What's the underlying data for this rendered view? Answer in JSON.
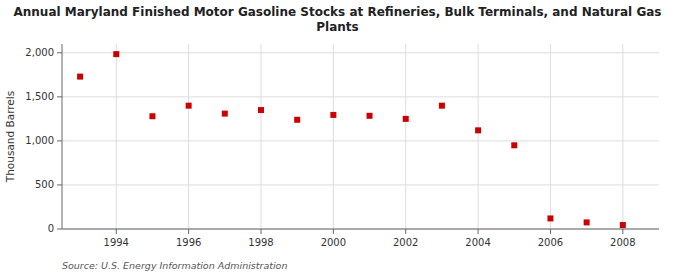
{
  "chart_data": {
    "type": "scatter",
    "title": "Annual Maryland Finished Motor Gasoline Stocks at Refineries, Bulk Terminals, and Natural Gas\nPlants",
    "ylabel": "Thousand Barrels",
    "source": "Source: U.S. Energy Information Administration",
    "x": [
      1993,
      1994,
      1995,
      1996,
      1997,
      1998,
      1999,
      2000,
      2001,
      2002,
      2003,
      2004,
      2005,
      2006,
      2007,
      2008
    ],
    "values": [
      1730,
      1985,
      1280,
      1400,
      1310,
      1350,
      1240,
      1295,
      1285,
      1250,
      1400,
      1120,
      950,
      120,
      75,
      45
    ],
    "color": "#cc0000",
    "marker": "square",
    "xlim": [
      1992.5,
      2009.0
    ],
    "ylim": [
      0,
      2100
    ],
    "xticks": [
      1994,
      1996,
      1998,
      2000,
      2002,
      2004,
      2006,
      2008
    ],
    "yticks": [
      0,
      500,
      {
        "value": 1000,
        "label": "1,000"
      },
      {
        "value": 1500,
        "label": "1,500"
      },
      {
        "value": 2000,
        "label": "2,000"
      }
    ],
    "grid": true
  }
}
